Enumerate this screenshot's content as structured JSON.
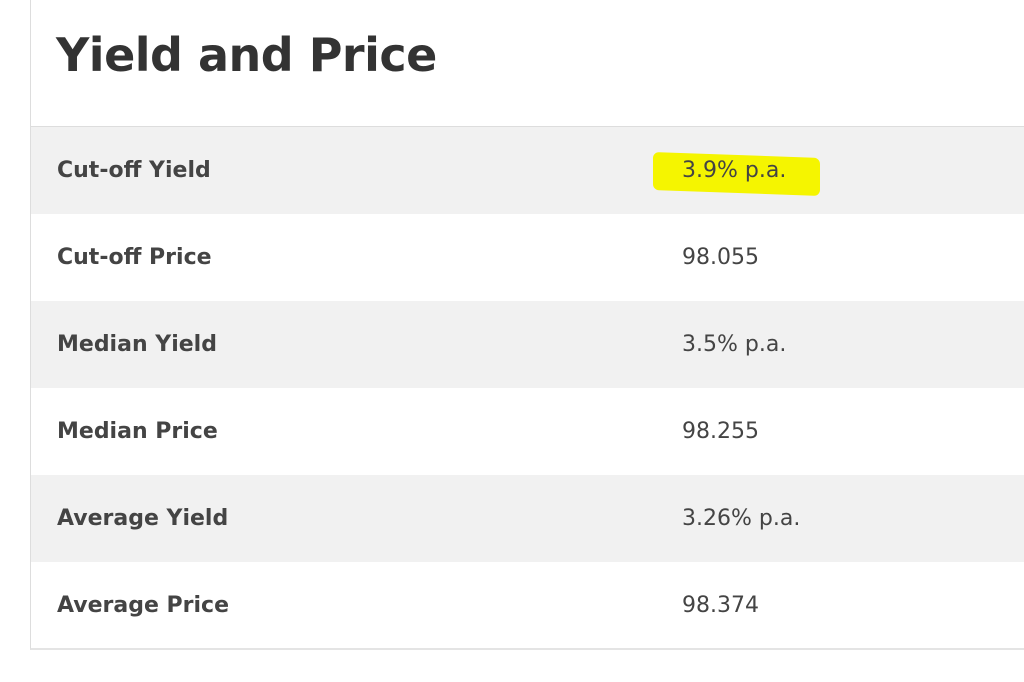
{
  "header": {
    "title": "Yield and Price"
  },
  "table": {
    "rows": [
      [
        "Cut-off Yield",
        "3.9% p.a."
      ],
      [
        "Cut-off Price",
        "98.055"
      ],
      [
        "Median Yield",
        "3.5% p.a."
      ],
      [
        "Median Price",
        "98.255"
      ],
      [
        "Average Yield",
        "3.26% p.a."
      ],
      [
        "Average Price",
        "98.374"
      ]
    ]
  }
}
